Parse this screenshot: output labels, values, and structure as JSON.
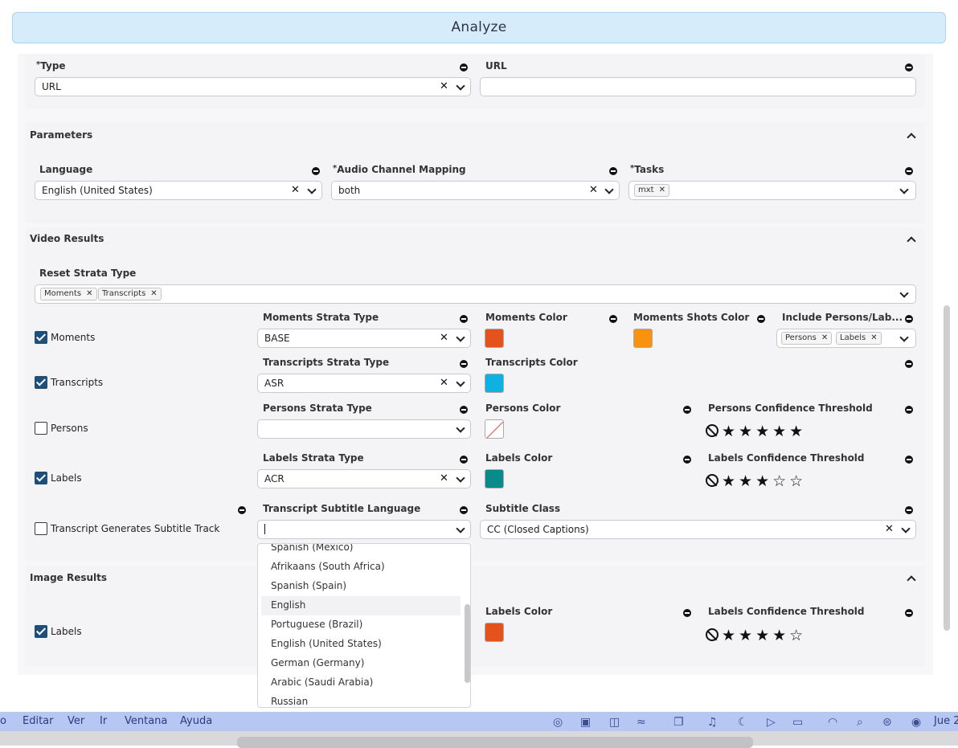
{
  "analyze_button": "Analyze",
  "source": {
    "type_label": "Type",
    "type_value": "URL",
    "url_label": "URL",
    "url_value": ""
  },
  "parameters": {
    "title": "Parameters",
    "language_label": "Language",
    "language_value": "English (United States)",
    "audio_label": "Audio Channel Mapping",
    "audio_value": "both",
    "tasks_label": "Tasks",
    "tasks_chips": [
      "mxt"
    ]
  },
  "video_results": {
    "title": "Video Results",
    "reset_strata_label": "Reset Strata Type",
    "reset_strata_chips": [
      "Moments",
      "Transcripts"
    ],
    "moments": {
      "checkbox_label": "Moments",
      "checked": true,
      "strata_label": "Moments Strata Type",
      "strata_value": "BASE",
      "color_label": "Moments Color",
      "color": "#e4531b",
      "shots_color_label": "Moments Shots Color",
      "shots_color": "#f7930f",
      "include_label": "Include Persons/Lab...",
      "include_chips": [
        "Persons",
        "Labels"
      ]
    },
    "transcripts": {
      "checkbox_label": "Transcripts",
      "checked": true,
      "strata_label": "Transcripts Strata Type",
      "strata_value": "ASR",
      "color_label": "Transcripts Color",
      "color": "#0fb0e2"
    },
    "persons": {
      "checkbox_label": "Persons",
      "checked": false,
      "strata_label": "Persons Strata Type",
      "strata_value": "",
      "color_label": "Persons Color",
      "color": "none",
      "threshold_label": "Persons Confidence Threshold",
      "rating": 5,
      "rating_max": 5
    },
    "labels": {
      "checkbox_label": "Labels",
      "checked": true,
      "strata_label": "Labels Strata Type",
      "strata_value": "ACR",
      "color_label": "Labels Color",
      "color": "#0b8a8c",
      "threshold_label": "Labels Confidence Threshold",
      "rating": 3,
      "rating_max": 5
    },
    "subtitle": {
      "checkbox_label": "Transcript Generates Subtitle Track",
      "checked": false,
      "language_label": "Transcript Subtitle Language",
      "language_value": "",
      "class_label": "Subtitle Class",
      "class_value": "CC (Closed Captions)"
    }
  },
  "language_dropdown": {
    "options": [
      "Spanish (Mexico)",
      "Afrikaans (South Africa)",
      "Spanish (Spain)",
      "English",
      "Portuguese (Brazil)",
      "English (United States)",
      "German (Germany)",
      "Arabic (Saudi Arabia)",
      "Russian"
    ],
    "highlighted": "English"
  },
  "image_results": {
    "title": "Image Results",
    "labels": {
      "checkbox_label": "Labels",
      "checked": true,
      "color_label": "Labels Color",
      "color": "#e4531b",
      "threshold_label": "Labels Confidence Threshold",
      "rating": 4,
      "rating_max": 5
    }
  },
  "menubar": {
    "items": [
      "o",
      "Editar",
      "Ver",
      "Ir",
      "Ventana",
      "Ayuda"
    ],
    "clock": "Jue 2"
  }
}
